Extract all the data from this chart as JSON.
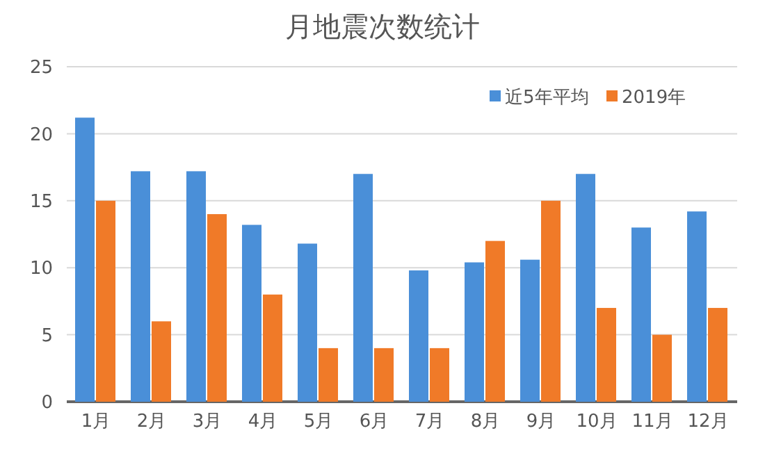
{
  "chart_data": {
    "type": "bar",
    "title": "月地震次数统计",
    "categories": [
      "1月",
      "2月",
      "3月",
      "4月",
      "5月",
      "6月",
      "7月",
      "8月",
      "9月",
      "10月",
      "11月",
      "12月"
    ],
    "series": [
      {
        "name": "近5年平均",
        "color": "#4a8fd8",
        "values": [
          21.2,
          17.2,
          17.2,
          13.2,
          11.8,
          17,
          9.8,
          10.4,
          10.6,
          17,
          13,
          14.2
        ]
      },
      {
        "name": "2019年",
        "color": "#f07a28",
        "values": [
          15,
          6,
          14,
          8,
          4,
          4,
          4,
          12,
          15,
          7,
          5,
          7
        ]
      }
    ],
    "ylim": [
      0,
      25
    ],
    "yticks": [
      0,
      5,
      10,
      15,
      20,
      25
    ],
    "grid": "y",
    "legend": "top right"
  }
}
